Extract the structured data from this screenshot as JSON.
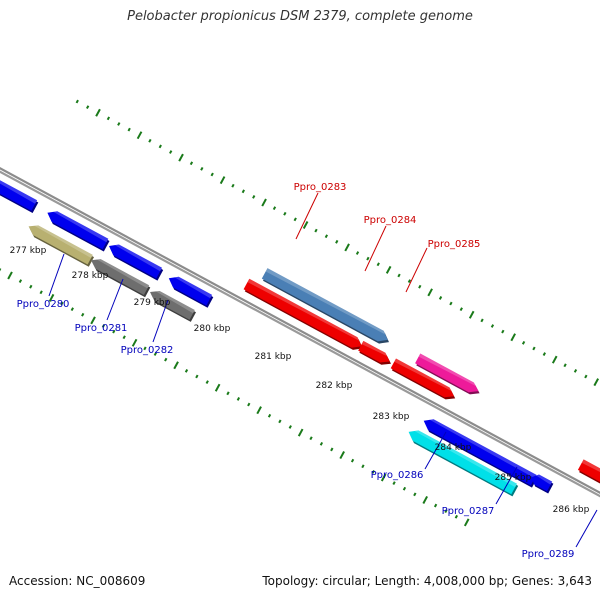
{
  "title": "Pelobacter propionicus DSM 2379, complete genome",
  "footer": {
    "accession": "Accession: NC_008609",
    "summary": "Topology: circular; Length: 4,008,000 bp; Genes: 3,643"
  },
  "colors": {
    "backbone": "#8c8c8c",
    "tick_dots": "#1a7a1a",
    "label_forward": "#cc0000",
    "label_reverse": "#0000bb"
  },
  "tick_labels": [
    "277 kbp",
    "278 kbp",
    "279 kbp",
    "280 kbp",
    "281 kbp",
    "282 kbp",
    "283 kbp",
    "284 kbp",
    "285 kbp",
    "286 kbp"
  ],
  "genes": [
    {
      "name": "",
      "strand": "reverse",
      "color": "#0000ee"
    },
    {
      "name": "",
      "strand": "reverse",
      "color": "#0000ee"
    },
    {
      "name": "Ppro_0280",
      "strand": "reverse",
      "color": "#b8b070"
    },
    {
      "name": "",
      "strand": "reverse",
      "color": "#0000ee"
    },
    {
      "name": "Ppro_0281",
      "strand": "reverse",
      "color": "#6e6e6e"
    },
    {
      "name": "",
      "strand": "reverse",
      "color": "#0000ee"
    },
    {
      "name": "Ppro_0282",
      "strand": "reverse",
      "color": "#6e6e6e"
    },
    {
      "name": "Ppro_0283",
      "strand": "forward",
      "color": "#4a7fb5"
    },
    {
      "name": "",
      "strand": "forward",
      "color": "#ee0000"
    },
    {
      "name": "",
      "strand": "forward",
      "color": "#ee0000"
    },
    {
      "name": "Ppro_0284",
      "strand": "forward",
      "color": "#ee1a9a"
    },
    {
      "name": "Ppro_0285",
      "strand": "forward",
      "color": "#ee0000"
    },
    {
      "name": "",
      "strand": "reverse",
      "color": "#0000ee"
    },
    {
      "name": "Ppro_0286",
      "strand": "reverse",
      "color": "#00e0e8"
    },
    {
      "name": "Ppro_0287",
      "strand": "reverse",
      "color": "#0000ee"
    },
    {
      "name": "",
      "strand": "forward",
      "color": "#ee0000"
    },
    {
      "name": "Ppro_0289",
      "strand": "reverse",
      "color": "#0000ee"
    }
  ]
}
